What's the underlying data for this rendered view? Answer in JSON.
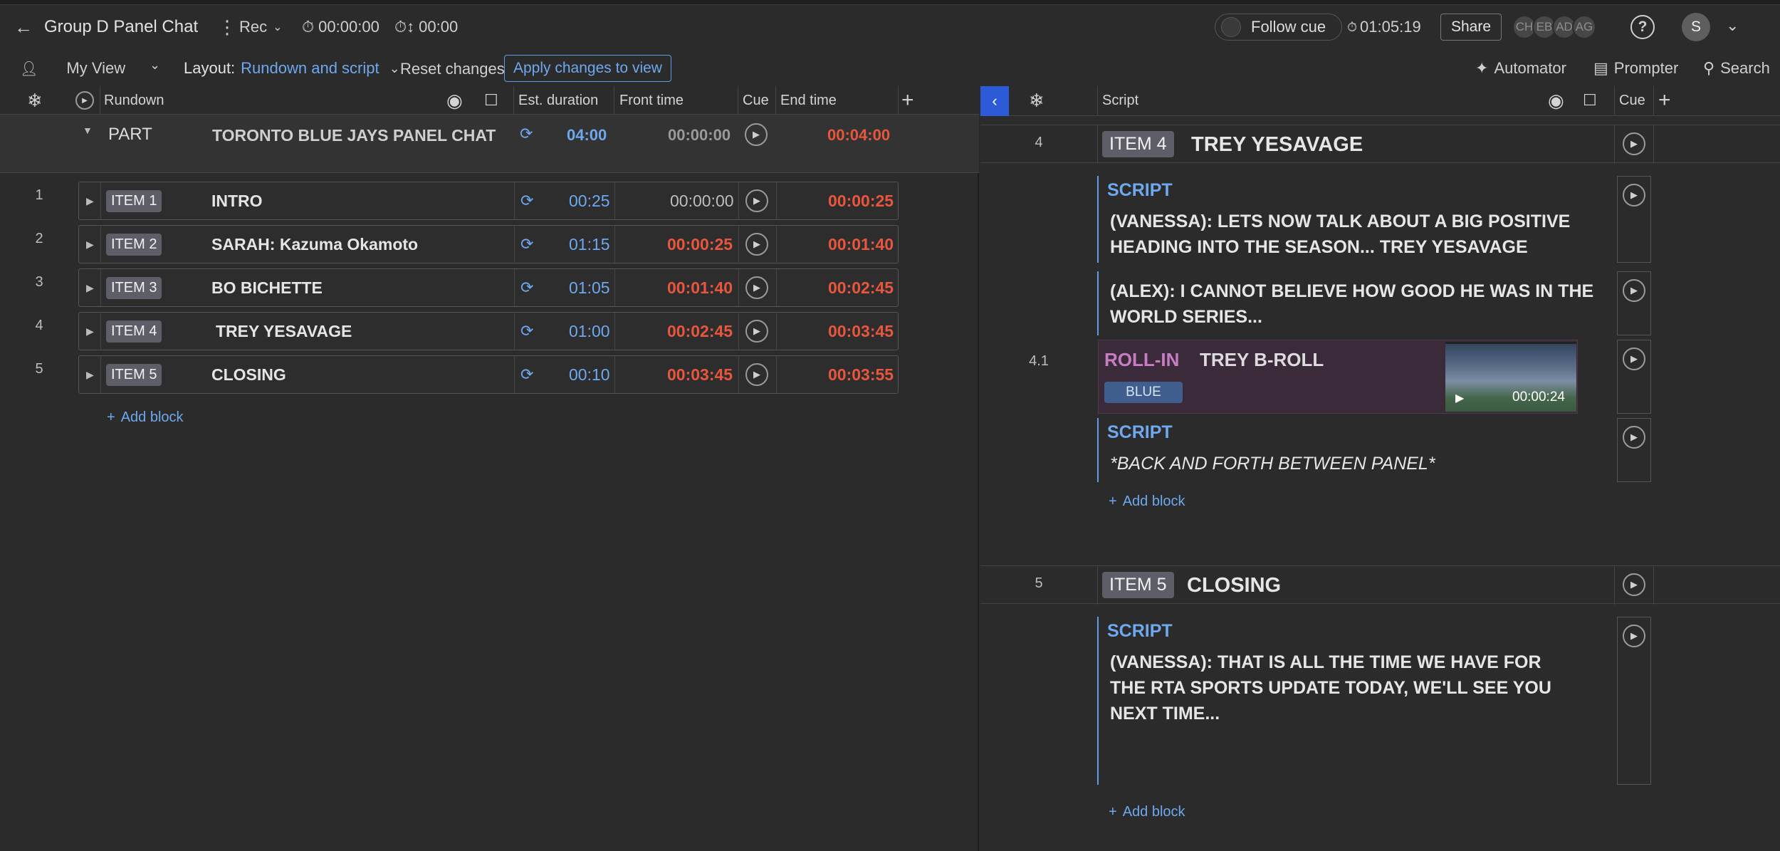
{
  "header": {
    "title": "Group D Panel Chat",
    "rec_label": "Rec",
    "rec_timer": "00:00:00",
    "countdown": "00:00",
    "follow_cue": "Follow cue",
    "clock": "01:05:19",
    "share": "Share",
    "collaborators": [
      "CH",
      "EB",
      "AD",
      "AG"
    ],
    "user_initial": "S"
  },
  "viewbar": {
    "view_name": "My View",
    "layout_label": "Layout:",
    "layout_value": "Rundown and script",
    "reset": "Reset changes",
    "apply": "Apply changes to view",
    "automator": "Automator",
    "prompter": "Prompter",
    "search": "Search"
  },
  "rundown": {
    "columns": {
      "rundown": "Rundown",
      "est_duration": "Est. duration",
      "front_time": "Front time",
      "cue": "Cue",
      "end_time": "End time"
    },
    "part": {
      "label": "PART",
      "title": "TORONTO BLUE JAYS PANEL CHAT",
      "duration": "04:00",
      "front": "00:00:00",
      "end": "00:04:00"
    },
    "items": [
      {
        "num": "1",
        "badge": "ITEM 1",
        "title": "INTRO",
        "duration": "00:25",
        "front": "00:00:00",
        "end": "00:00:25"
      },
      {
        "num": "2",
        "badge": "ITEM 2",
        "title": "SARAH: Kazuma Okamoto",
        "duration": "01:15",
        "front": "00:00:25",
        "end": "00:01:40"
      },
      {
        "num": "3",
        "badge": "ITEM 3",
        "title": "BO BICHETTE",
        "duration": "01:05",
        "front": "00:01:40",
        "end": "00:02:45"
      },
      {
        "num": "4",
        "badge": "ITEM 4",
        "title": "TREY YESAVAGE",
        "duration": "01:00",
        "front": "00:02:45",
        "end": "00:03:45"
      },
      {
        "num": "5",
        "badge": "ITEM 5",
        "title": "CLOSING",
        "duration": "00:10",
        "front": "00:03:45",
        "end": "00:03:55"
      }
    ],
    "add_block": "Add block"
  },
  "script": {
    "columns": {
      "script": "Script",
      "cue": "Cue"
    },
    "item4": {
      "num": "4",
      "badge": "ITEM 4",
      "title": "TREY YESAVAGE",
      "block1_label": "SCRIPT",
      "block1_text": "(VANESSA): LETS NOW TALK ABOUT A BIG POSITIVE HEADING INTO THE SEASON... TREY YESAVAGE",
      "block2_text": "(ALEX): I CANNOT BELIEVE HOW GOOD HE WAS IN THE WORLD SERIES...",
      "rollin_num": "4.1",
      "rollin_label": "ROLL-IN",
      "rollin_title": "TREY B-ROLL",
      "rollin_tag": "BLUE",
      "rollin_duration": "00:00:24",
      "block3_label": "SCRIPT",
      "block3_text": "*BACK AND FORTH BETWEEN PANEL*",
      "add_block": "Add block"
    },
    "item5": {
      "num": "5",
      "badge": "ITEM 5",
      "title": "CLOSING",
      "block1_label": "SCRIPT",
      "block1_text": "(VANESSA): THAT IS ALL THE TIME WE HAVE FOR THE RTA SPORTS UPDATE TODAY, WE'LL SEE YOU NEXT TIME...",
      "add_block": "Add block"
    }
  }
}
